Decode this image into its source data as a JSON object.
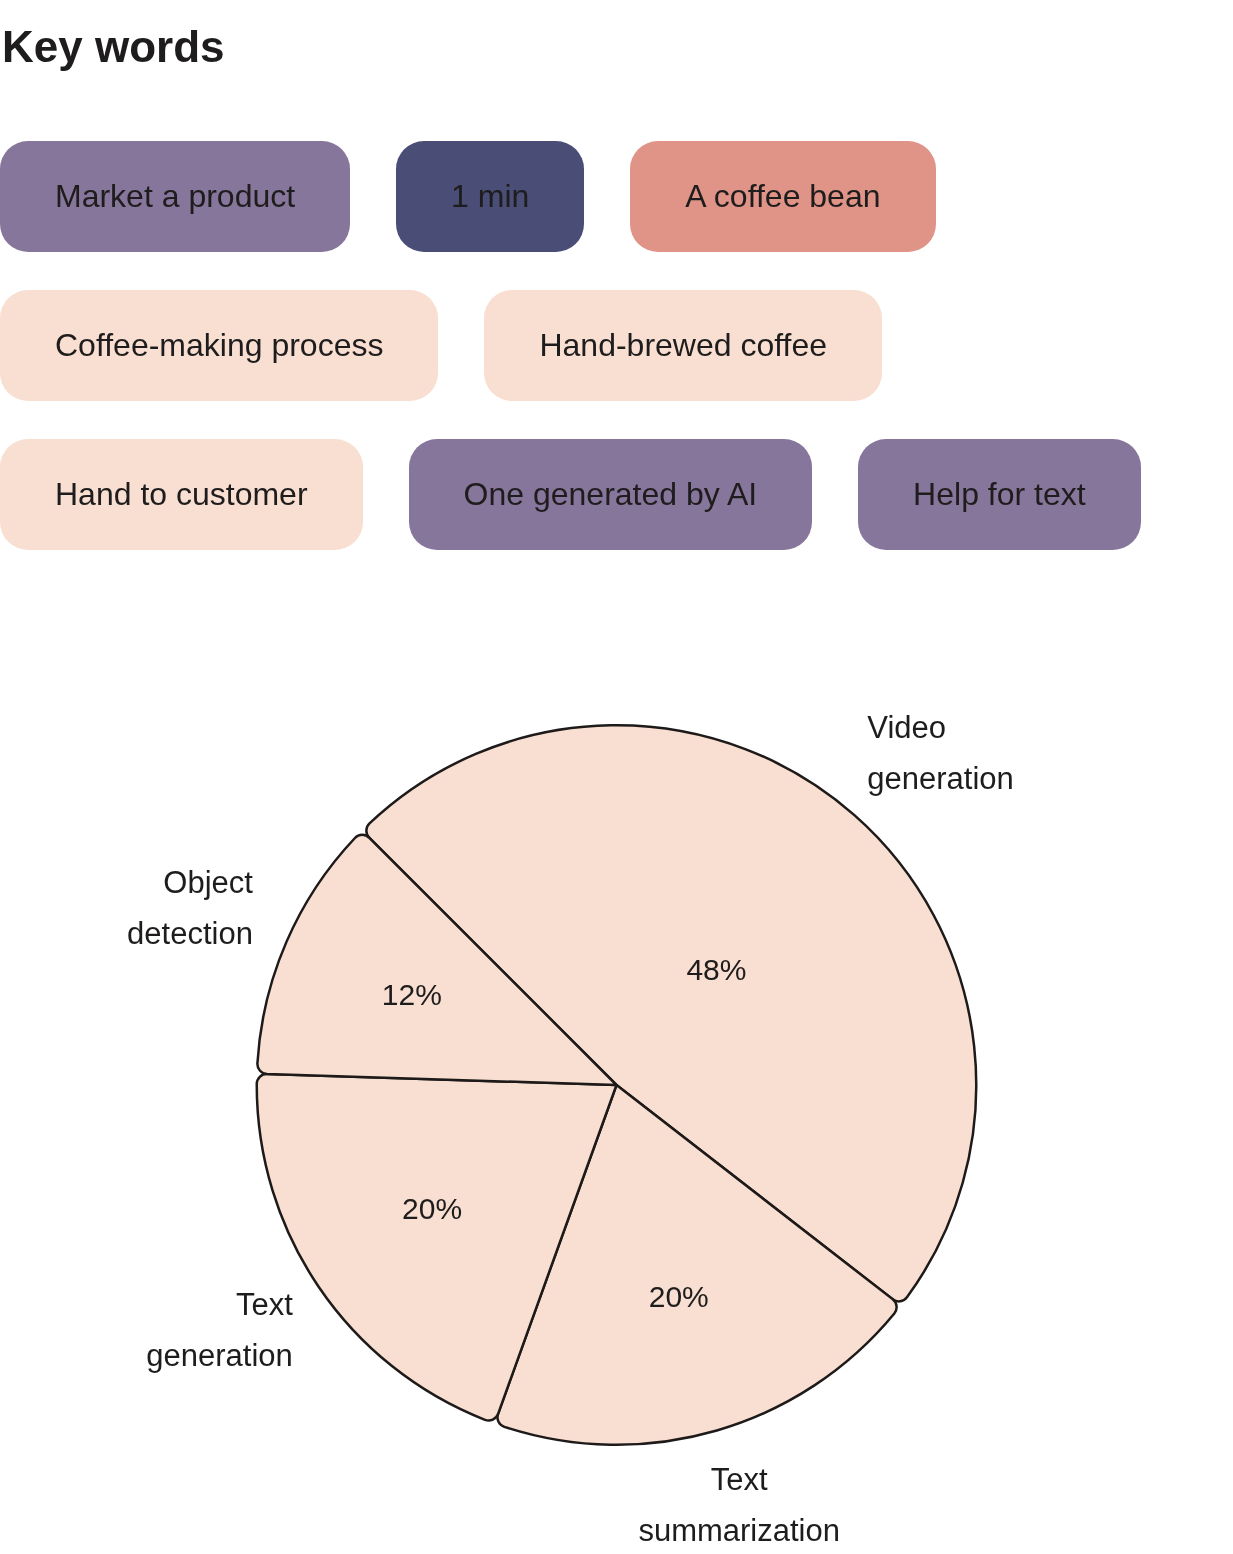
{
  "chart_data": [
    {
      "type": "other",
      "title": "Key words",
      "annotations": [
        "Market a product",
        "1 min",
        "A coffee bean",
        "Coffee-making process",
        "Hand-brewed coffee",
        "Hand to customer",
        "One generated by AI",
        "Help for text"
      ]
    },
    {
      "type": "pie",
      "categories": [
        "Video generation",
        "Text summarization",
        "Text generation",
        "Object detection"
      ],
      "values": [
        48,
        20,
        20,
        12
      ],
      "colors": [
        "#f8dfd1",
        "#f8dfd1",
        "#f8dfd1",
        "#f8dfd1"
      ],
      "value_labels": [
        "48%",
        "20%",
        "20%",
        "12%"
      ],
      "legend": false
    }
  ]
}
